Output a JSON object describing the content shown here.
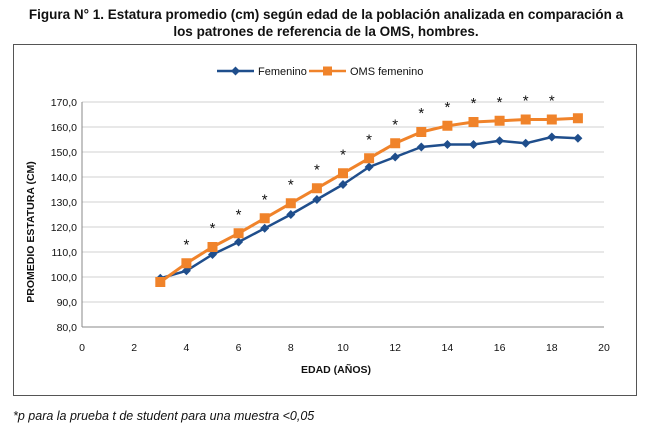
{
  "caption": {
    "line1": "Figura N° 1. Estatura promedio (cm) según edad de la población analizada en comparación a",
    "line2": "los patrones de referencia de la OMS, hombres."
  },
  "footnote": "*p para la prueba t de student para una muestra <0,05",
  "chart_data": {
    "type": "line",
    "xlabel": "EDAD (AÑOS)",
    "ylabel": "PROMEDIO ESTATURA (CM)",
    "xlim": [
      0,
      20
    ],
    "ylim": [
      80,
      170
    ],
    "x_ticks": [
      "0",
      "2",
      "4",
      "6",
      "8",
      "10",
      "12",
      "14",
      "16",
      "18",
      "20"
    ],
    "y_ticks": [
      "80,0",
      "90,0",
      "100,0",
      "110,0",
      "120,0",
      "130,0",
      "140,0",
      "150,0",
      "160,0",
      "170,0"
    ],
    "grid": "horizontal",
    "legend_position": "top",
    "x": [
      3,
      4,
      5,
      6,
      7,
      8,
      9,
      10,
      11,
      12,
      13,
      14,
      15,
      16,
      17,
      18,
      19
    ],
    "series": [
      {
        "name": "Femenino",
        "color": "#1f4e8c",
        "marker": "diamond",
        "values": [
          99.5,
          102.5,
          109.0,
          114.0,
          119.5,
          125.0,
          131.0,
          137.0,
          144.0,
          148.0,
          152.0,
          153.0,
          153.0,
          154.5,
          153.5,
          156.0,
          155.5
        ]
      },
      {
        "name": "OMS femenino",
        "color": "#f0832a",
        "marker": "square",
        "values": [
          98.0,
          105.5,
          112.0,
          117.5,
          123.5,
          129.5,
          135.5,
          141.5,
          147.5,
          153.5,
          158.0,
          160.5,
          162.0,
          162.5,
          163.0,
          163.0,
          163.5
        ]
      }
    ],
    "significance_marker": "*",
    "significant_x": [
      4,
      5,
      6,
      7,
      8,
      9,
      10,
      11,
      12,
      13,
      14,
      15,
      16,
      17,
      18
    ]
  }
}
